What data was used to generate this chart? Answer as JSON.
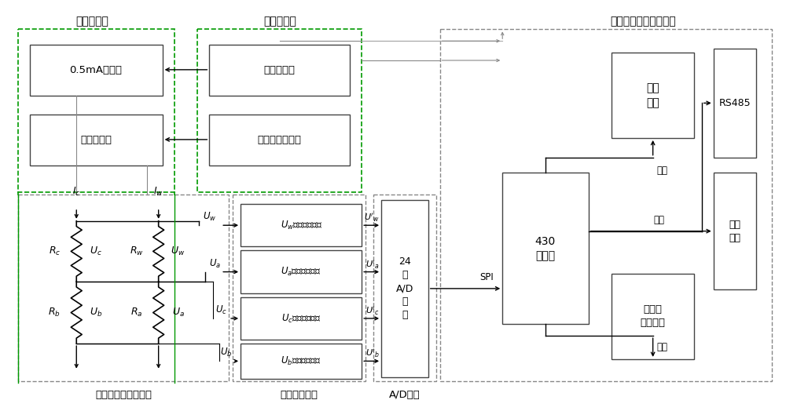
{
  "bg_color": "#ffffff",
  "module_labels": {
    "hengliuyuan": "恒流源模块",
    "dianyayuan": "电压源模块",
    "zhukong": "主控单元及其外围模块",
    "chuanganqi": "传感器信号输出模块",
    "xinhao": "信号调理模块",
    "AD": "A/D模块"
  }
}
